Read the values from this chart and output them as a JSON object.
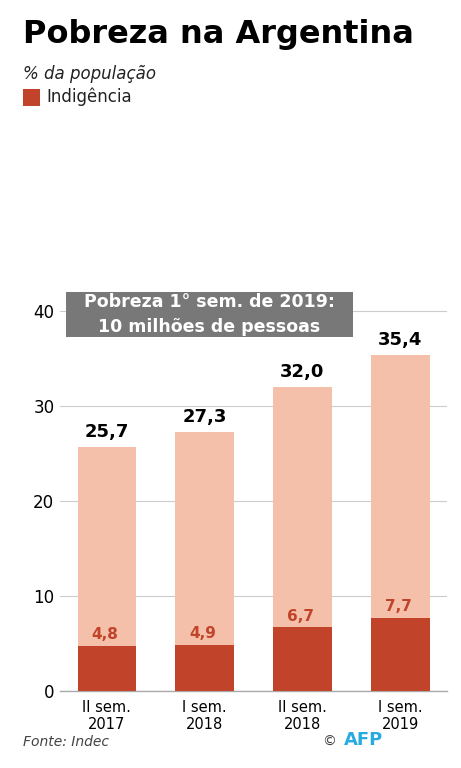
{
  "title": "Pobreza na Argentina",
  "subtitle": "% da população",
  "legend_label": "Indigência",
  "annotation_box_line1": "Pobreza 1° sem. de 2019:",
  "annotation_box_line2": "10 milhões de pessoas",
  "source": "Fonte: Indec",
  "categories": [
    "II sem.\n2017",
    "I sem.\n2018",
    "II sem.\n2018",
    "I sem.\n2019"
  ],
  "poverty_values": [
    25.7,
    27.3,
    32.0,
    35.4
  ],
  "indigence_values": [
    4.8,
    4.9,
    6.7,
    7.7
  ],
  "poverty_color": "#f5c0aa",
  "indigence_color": "#c0432a",
  "bar_width": 0.6,
  "ylim": [
    0,
    42
  ],
  "yticks": [
    0,
    10,
    20,
    30,
    40
  ],
  "background_color": "#ffffff",
  "grid_color": "#cccccc",
  "title_fontsize": 23,
  "subtitle_fontsize": 12,
  "value_label_poverty_fontsize": 13,
  "value_label_indigence_fontsize": 11,
  "annotation_box_color": "#787878",
  "annotation_text_color": "#ffffff",
  "annotation_fontsize": 12.5,
  "axis_label_fontsize": 11,
  "ytick_fontsize": 12,
  "xtick_fontsize": 10.5
}
